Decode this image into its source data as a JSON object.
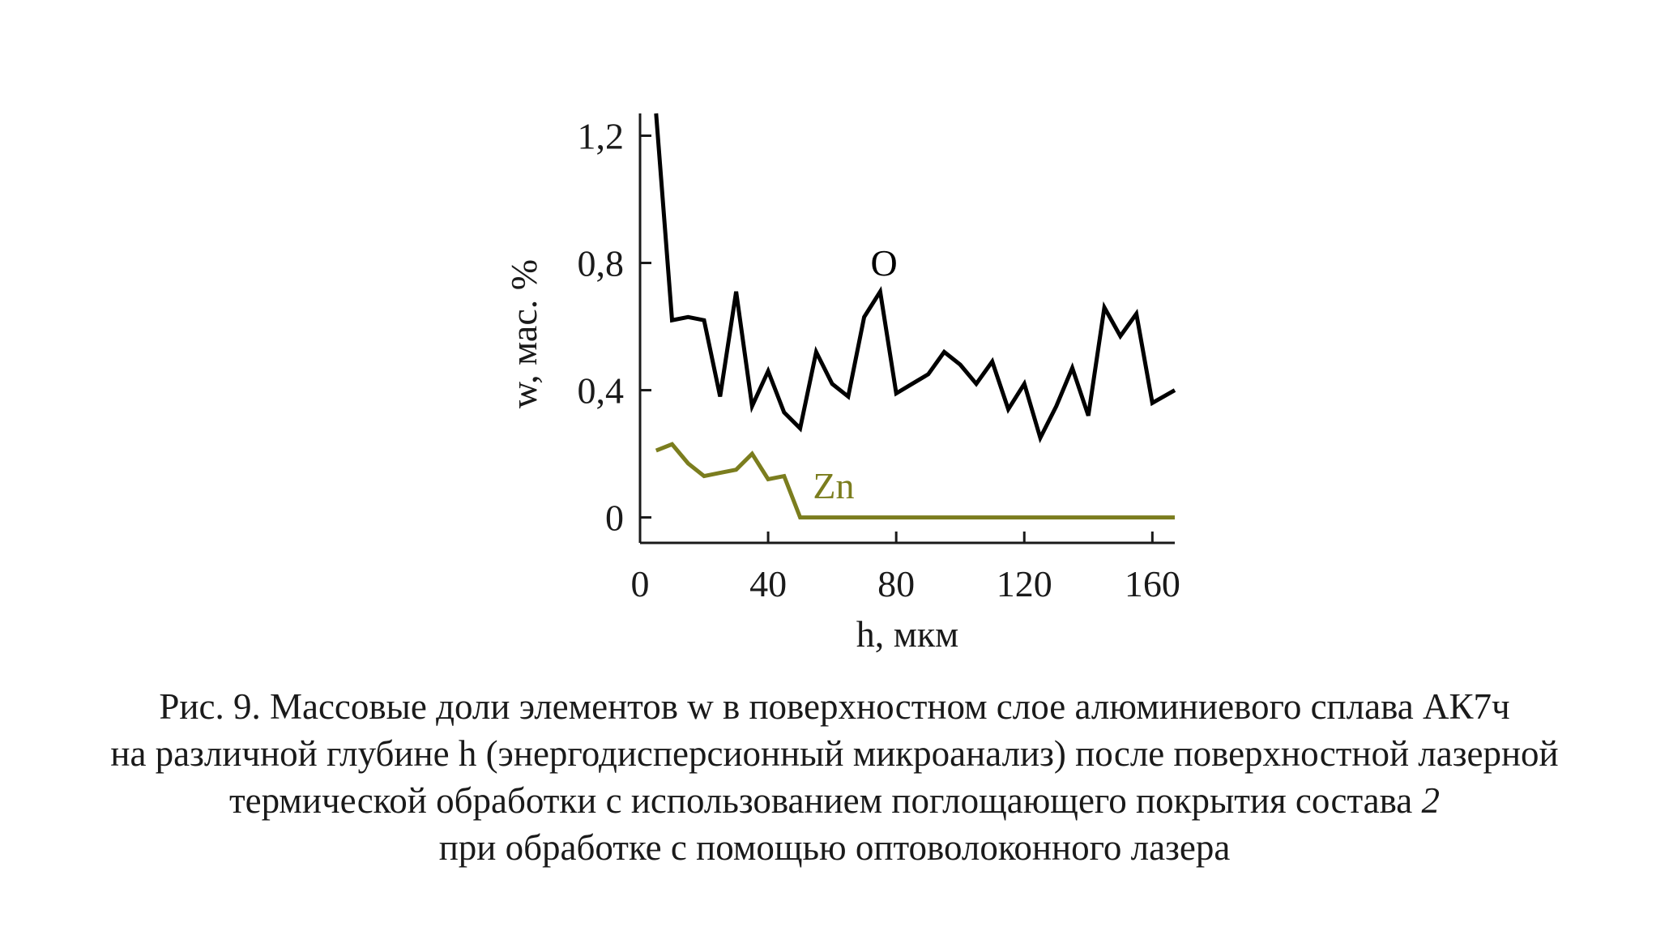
{
  "chart_data": {
    "type": "line",
    "xlabel": "h, мкм",
    "ylabel": "w, мас. %",
    "xlim": [
      0,
      167
    ],
    "ylim": [
      -0.08,
      1.27
    ],
    "x_ticks": [
      0,
      40,
      80,
      120,
      160
    ],
    "x_tick_labels": [
      "0",
      "40",
      "80",
      "120",
      "160"
    ],
    "y_ticks": [
      0,
      0.4,
      0.8,
      1.2
    ],
    "y_tick_labels": [
      "0",
      "0,4",
      "0,8",
      "1,2"
    ],
    "grid": false,
    "series": [
      {
        "name": "O",
        "color": "#000000",
        "x": [
          5,
          10,
          15,
          20,
          25,
          30,
          35,
          40,
          45,
          50,
          55,
          60,
          65,
          70,
          75,
          80,
          85,
          90,
          95,
          100,
          105,
          110,
          115,
          120,
          125,
          130,
          135,
          140,
          145,
          150,
          155,
          160,
          167
        ],
        "y": [
          1.27,
          0.62,
          0.63,
          0.62,
          0.38,
          0.71,
          0.35,
          0.46,
          0.33,
          0.28,
          0.52,
          0.42,
          0.38,
          0.63,
          0.71,
          0.39,
          0.42,
          0.45,
          0.52,
          0.48,
          0.42,
          0.49,
          0.34,
          0.42,
          0.25,
          0.35,
          0.47,
          0.32,
          0.66,
          0.57,
          0.64,
          0.36,
          0.4
        ]
      },
      {
        "name": "Zn",
        "color": "#7b7d1e",
        "x": [
          5,
          10,
          15,
          20,
          25,
          30,
          35,
          40,
          45,
          50,
          60,
          80,
          100,
          120,
          140,
          160,
          167
        ],
        "y": [
          0.21,
          0.23,
          0.17,
          0.13,
          0.14,
          0.15,
          0.2,
          0.12,
          0.13,
          0.0,
          0.0,
          0.0,
          0.0,
          0.0,
          0.0,
          0.0,
          0.0
        ]
      }
    ],
    "annotations": [
      {
        "text": "O",
        "x": 72,
        "y": 0.76
      },
      {
        "text": "Zn",
        "x": 54,
        "y": 0.06
      }
    ]
  },
  "caption": {
    "line1": "Рис. 9. Массовые доли элементов w в поверхностном слое алюминиевого сплава АК7ч",
    "line2": "на различной глубине h (энергодисперсионный микроанализ) после поверхностной лазерной",
    "line3_main": "термической обработки с использованием поглощающего покрытия состава ",
    "line3_italic": "2",
    "line4": "при обработке с помощью оптоволоконного лазера"
  }
}
